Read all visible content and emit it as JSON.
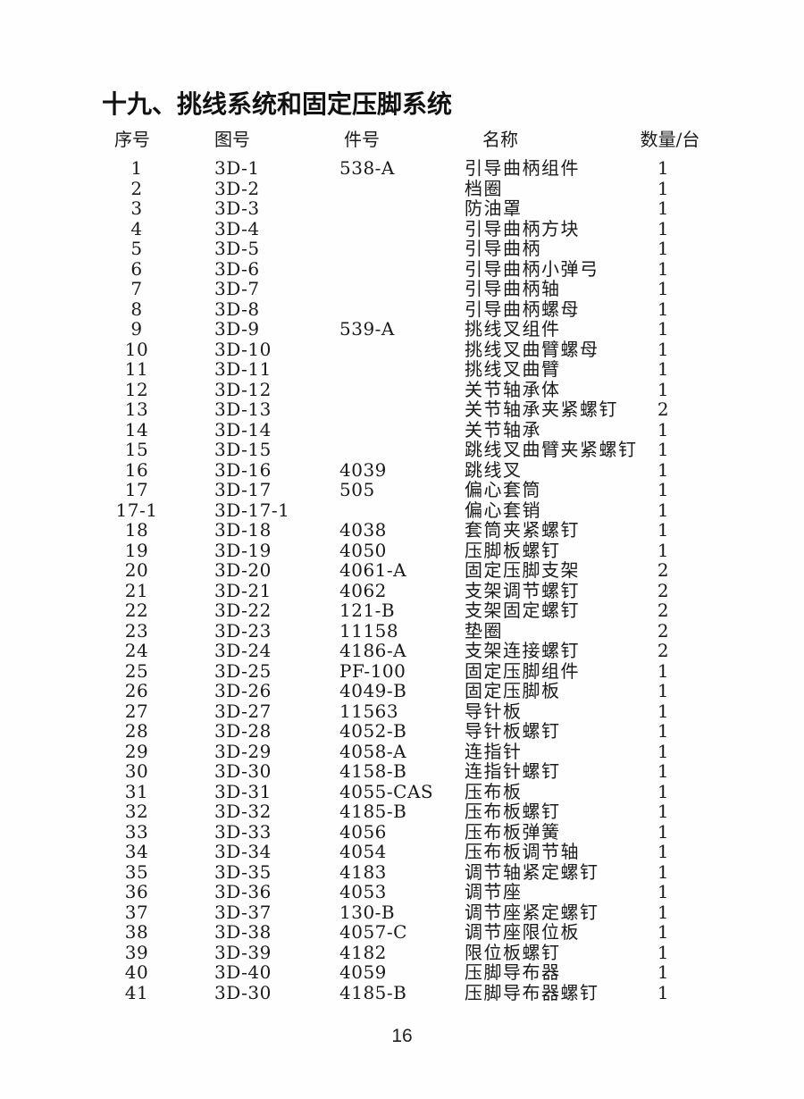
{
  "page": {
    "title": "十九、挑线系统和固定压脚系统",
    "page_number": "16",
    "ink_color": "#1a1a1a",
    "paper_color": "#fefefe"
  },
  "table": {
    "headers": [
      "序号",
      "图号",
      "件号",
      "名称",
      "数量/台"
    ],
    "rows": [
      {
        "no": "1",
        "fig": "3D-1",
        "part": "538-A",
        "name": "引导曲柄组件",
        "qty": "1"
      },
      {
        "no": "2",
        "fig": "3D-2",
        "part": "",
        "name": "档圈",
        "qty": "1"
      },
      {
        "no": "3",
        "fig": "3D-3",
        "part": "",
        "name": "防油罩",
        "qty": "1"
      },
      {
        "no": "4",
        "fig": "3D-4",
        "part": "",
        "name": "引导曲柄方块",
        "qty": "1"
      },
      {
        "no": "5",
        "fig": "3D-5",
        "part": "",
        "name": "引导曲柄",
        "qty": "1"
      },
      {
        "no": "6",
        "fig": "3D-6",
        "part": "",
        "name": "引导曲柄小弹弓",
        "qty": "1"
      },
      {
        "no": "7",
        "fig": "3D-7",
        "part": "",
        "name": "引导曲柄轴",
        "qty": "1"
      },
      {
        "no": "8",
        "fig": "3D-8",
        "part": "",
        "name": "引导曲柄螺母",
        "qty": "1"
      },
      {
        "no": "9",
        "fig": "3D-9",
        "part": "539-A",
        "name": "挑线叉组件",
        "qty": "1"
      },
      {
        "no": "10",
        "fig": "3D-10",
        "part": "",
        "name": "挑线叉曲臂螺母",
        "qty": "1"
      },
      {
        "no": "11",
        "fig": "3D-11",
        "part": "",
        "name": "挑线叉曲臂",
        "qty": "1"
      },
      {
        "no": "12",
        "fig": "3D-12",
        "part": "",
        "name": "关节轴承体",
        "qty": "1"
      },
      {
        "no": "13",
        "fig": "3D-13",
        "part": "",
        "name": "关节轴承夹紧螺钉",
        "qty": "2"
      },
      {
        "no": "14",
        "fig": "3D-14",
        "part": "",
        "name": "关节轴承",
        "qty": "1"
      },
      {
        "no": "15",
        "fig": "3D-15",
        "part": "",
        "name": "跳线叉曲臂夹紧螺钉",
        "qty": "1"
      },
      {
        "no": "16",
        "fig": "3D-16",
        "part": "4039",
        "name": "跳线叉",
        "qty": "1"
      },
      {
        "no": "17",
        "fig": "3D-17",
        "part": "505",
        "name": "偏心套筒",
        "qty": "1"
      },
      {
        "no": "17-1",
        "fig": "3D-17-1",
        "part": "",
        "name": "偏心套销",
        "qty": "1"
      },
      {
        "no": "18",
        "fig": "3D-18",
        "part": "4038",
        "name": "套筒夹紧螺钉",
        "qty": "1"
      },
      {
        "no": "19",
        "fig": "3D-19",
        "part": "4050",
        "name": "压脚板螺钉",
        "qty": "1"
      },
      {
        "no": "20",
        "fig": "3D-20",
        "part": "4061-A",
        "name": "固定压脚支架",
        "qty": "2"
      },
      {
        "no": "21",
        "fig": "3D-21",
        "part": "4062",
        "name": "支架调节螺钉",
        "qty": "2"
      },
      {
        "no": "22",
        "fig": "3D-22",
        "part": "121-B",
        "name": "支架固定螺钉",
        "qty": "2"
      },
      {
        "no": "23",
        "fig": "3D-23",
        "part": "11158",
        "name": "垫圈",
        "qty": "2"
      },
      {
        "no": "24",
        "fig": "3D-24",
        "part": "4186-A",
        "name": "支架连接螺钉",
        "qty": "2"
      },
      {
        "no": "25",
        "fig": "3D-25",
        "part": "PF-100",
        "name": "固定压脚组件",
        "qty": "1"
      },
      {
        "no": "26",
        "fig": "3D-26",
        "part": "4049-B",
        "name": "固定压脚板",
        "qty": "1"
      },
      {
        "no": "27",
        "fig": "3D-27",
        "part": "11563",
        "name": "导针板",
        "qty": "1"
      },
      {
        "no": "28",
        "fig": "3D-28",
        "part": "4052-B",
        "name": "导针板螺钉",
        "qty": "1"
      },
      {
        "no": "29",
        "fig": "3D-29",
        "part": "4058-A",
        "name": "连指针",
        "qty": "1"
      },
      {
        "no": "30",
        "fig": "3D-30",
        "part": "4158-B",
        "name": "连指针螺钉",
        "qty": "1"
      },
      {
        "no": "31",
        "fig": "3D-31",
        "part": "4055-CAS",
        "name": "压布板",
        "qty": "1"
      },
      {
        "no": "32",
        "fig": "3D-32",
        "part": "4185-B",
        "name": "压布板螺钉",
        "qty": "1"
      },
      {
        "no": "33",
        "fig": "3D-33",
        "part": "4056",
        "name": "压布板弹簧",
        "qty": "1"
      },
      {
        "no": "34",
        "fig": "3D-34",
        "part": "4054",
        "name": "压布板调节轴",
        "qty": "1"
      },
      {
        "no": "35",
        "fig": "3D-35",
        "part": "4183",
        "name": "调节轴紧定螺钉",
        "qty": "1"
      },
      {
        "no": "36",
        "fig": "3D-36",
        "part": "4053",
        "name": "调节座",
        "qty": "1"
      },
      {
        "no": "37",
        "fig": "3D-37",
        "part": "130-B",
        "name": "调节座紧定螺钉",
        "qty": "1"
      },
      {
        "no": "38",
        "fig": "3D-38",
        "part": "4057-C",
        "name": "调节座限位板",
        "qty": "1"
      },
      {
        "no": "39",
        "fig": "3D-39",
        "part": "4182",
        "name": "限位板螺钉",
        "qty": "1"
      },
      {
        "no": "40",
        "fig": "3D-40",
        "part": "4059",
        "name": "压脚导布器",
        "qty": "1"
      },
      {
        "no": "41",
        "fig": "3D-30",
        "part": "4185-B",
        "name": "压脚导布器螺钉",
        "qty": "1"
      }
    ]
  }
}
